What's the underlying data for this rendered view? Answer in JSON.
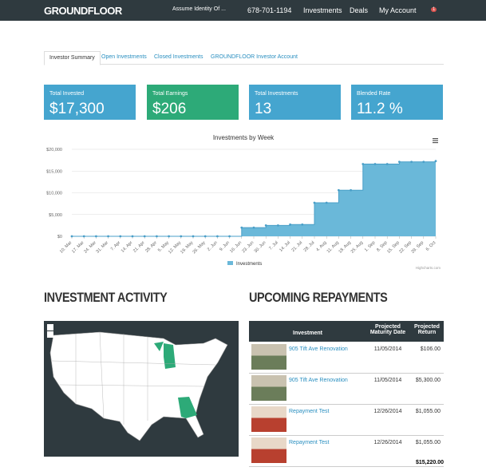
{
  "nav": {
    "logo": "GROUNDFLOOR",
    "assume": "Assume Identity Of ...",
    "phone": "678-701-1194",
    "links": [
      "Investments",
      "Deals",
      "My Account"
    ],
    "badge": "1"
  },
  "tabs": [
    "Investor Summary",
    "Open Investments",
    "Closed Investments",
    "GROUNDFLOOR Investor Account"
  ],
  "stats": [
    {
      "label": "Total Invested",
      "value": "$17,300"
    },
    {
      "label": "Total Earnings",
      "value": "$206"
    },
    {
      "label": "Total Investments",
      "value": "13"
    },
    {
      "label": "Blended Rate",
      "value": "11.2 %"
    }
  ],
  "chart_data": {
    "type": "step-area",
    "title": "Investments by Week",
    "categories": [
      "10. Mar",
      "17. Mar",
      "24. Mar",
      "31. Mar",
      "7. Apr",
      "14. Apr",
      "21. Apr",
      "28. Apr",
      "5. May",
      "12. May",
      "19. May",
      "26. May",
      "2. Jun",
      "9. Jun",
      "16. Jun",
      "23. Jun",
      "30. Jun",
      "7. Jul",
      "14. Jul",
      "21. Jul",
      "28. Jul",
      "4. Aug",
      "11. Aug",
      "18. Aug",
      "25. Aug",
      "1. Sep",
      "8. Sep",
      "15. Sep",
      "22. Sep",
      "29. Sep",
      "6. Oct"
    ],
    "series": [
      {
        "name": "Investments",
        "color": "#6ab8d9",
        "values": [
          0,
          0,
          0,
          0,
          0,
          0,
          0,
          0,
          0,
          0,
          0,
          0,
          0,
          0,
          2000,
          2000,
          2500,
          2500,
          2700,
          2700,
          7700,
          7700,
          10600,
          10600,
          16600,
          16600,
          16600,
          17100,
          17100,
          17100,
          17300
        ]
      }
    ],
    "ylim": [
      0,
      20000
    ],
    "yticks": [
      {
        "value": 0,
        "label": "$0"
      },
      {
        "value": 5000,
        "label": "$5,000"
      },
      {
        "value": 10000,
        "label": "$10,000"
      },
      {
        "value": 15000,
        "label": "$15,000"
      },
      {
        "value": 20000,
        "label": "$20,000"
      }
    ],
    "grid": true,
    "credit": "Highcharts.com"
  },
  "activity": {
    "title": "INVESTMENT ACTIVITY"
  },
  "repayments": {
    "title": "UPCOMING REPAYMENTS",
    "headers": [
      "Investment",
      "Projected Maturity Date",
      "Projected Return"
    ],
    "rows": [
      [
        "905 Tift Ave Renovation",
        "11/05/2014",
        "$106.00"
      ],
      [
        "905 Tift Ave Renovation",
        "11/05/2014",
        "$5,300.00"
      ],
      [
        "Repayment Test",
        "12/26/2014",
        "$1,055.00"
      ],
      [
        "Repayment Test",
        "12/26/2014",
        "$1,055.00"
      ]
    ],
    "total": "$15,220.00"
  }
}
